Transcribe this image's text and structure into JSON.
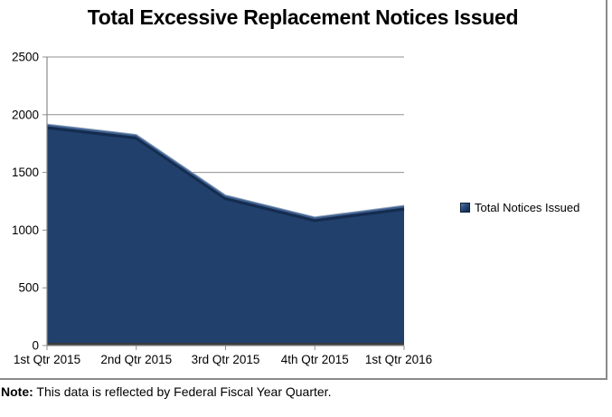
{
  "title": "Total Excessive Replacement Notices Issued",
  "legend": {
    "label": "Total Notices Issued"
  },
  "note": {
    "label": "Note:",
    "text": " This data is reflected by Federal Fiscal Year Quarter."
  },
  "colors": {
    "area_fill": "#21406B",
    "area_ridge": "#3F608F",
    "area_glint": "#8FA3BC",
    "area_ridge_shadow": "#142C50",
    "bottom_shadow": "#3B3B3B",
    "gridline": "#909090",
    "axis": "#8a8a8a",
    "text": "#000000"
  },
  "chart_data": {
    "type": "area",
    "categories": [
      "1st Qtr 2015",
      "2nd Qtr 2015",
      "3rd Qtr 2015",
      "4th Qtr 2015",
      "1st Qtr 2016"
    ],
    "series": [
      {
        "name": "Total Notices Issued",
        "values": [
          1910,
          1820,
          1295,
          1105,
          1205
        ]
      }
    ],
    "title": "Total Excessive Replacement Notices Issued",
    "xlabel": "",
    "ylabel": "",
    "ylim": [
      0,
      2500
    ],
    "yticks": [
      0,
      500,
      1000,
      1500,
      2000,
      2500
    ],
    "grid": true,
    "legend_position": "right",
    "note": "This data is reflected by Federal Fiscal Year Quarter."
  }
}
